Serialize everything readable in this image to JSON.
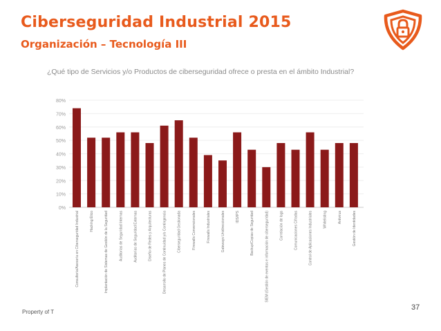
{
  "header": {
    "title": "Ciberseguridad Industrial 2015",
    "subtitle": "Organización – Tecnología III"
  },
  "logo": {
    "icon": "shield-lock-logo",
    "color": "#e85a1c"
  },
  "footer": {
    "property_text": "Property of T",
    "page_number": "37"
  },
  "colors": {
    "accent": "#e85a1c",
    "bar": "#8b1a1a",
    "axis_text": "#9a9a9a"
  },
  "chart_data": {
    "type": "bar",
    "title": "¿Qué tipo de Servicios y/o Productos de ciberseguridad ofrece o presta en el ámbito Industrial?",
    "xlabel": "",
    "ylabel": "",
    "ylim": [
      0,
      80
    ],
    "yticks": [
      "0%",
      "10%",
      "20%",
      "30%",
      "40%",
      "50%",
      "60%",
      "70%",
      "80%"
    ],
    "categories": [
      "Consultoría/Asesoría en Ciberseguridad Industrial",
      "Hacking Ético",
      "Implantación de Sistemas de Gestión de la Seguridad",
      "Auditorías de Seguridad Internas",
      "Auditorías de Seguridad Externas",
      "Diseño de Redes y Arquitecturas",
      "Desarrollo de Planes de Continuidad y/o Contingencia",
      "Ciberseguridad Gestionada",
      "Firewalls Convencionales",
      "Firewalls Industriales",
      "Gateways Unidireccionales",
      "IDS/IPS",
      "Backup/Copias de Seguridad",
      "SIEM (Gestión de eventos e información de ciberseguridad)",
      "Correlación de logs",
      "Comunicaciones Cifradas",
      "Control de Aplicaciones Industriales",
      "Whitelisting",
      "Antivirus",
      "Gestión de Identidades"
    ],
    "values": [
      74,
      52,
      52,
      56,
      56,
      48,
      61,
      65,
      52,
      39,
      35,
      56,
      43,
      30,
      48,
      43,
      56,
      43,
      48,
      48
    ]
  }
}
